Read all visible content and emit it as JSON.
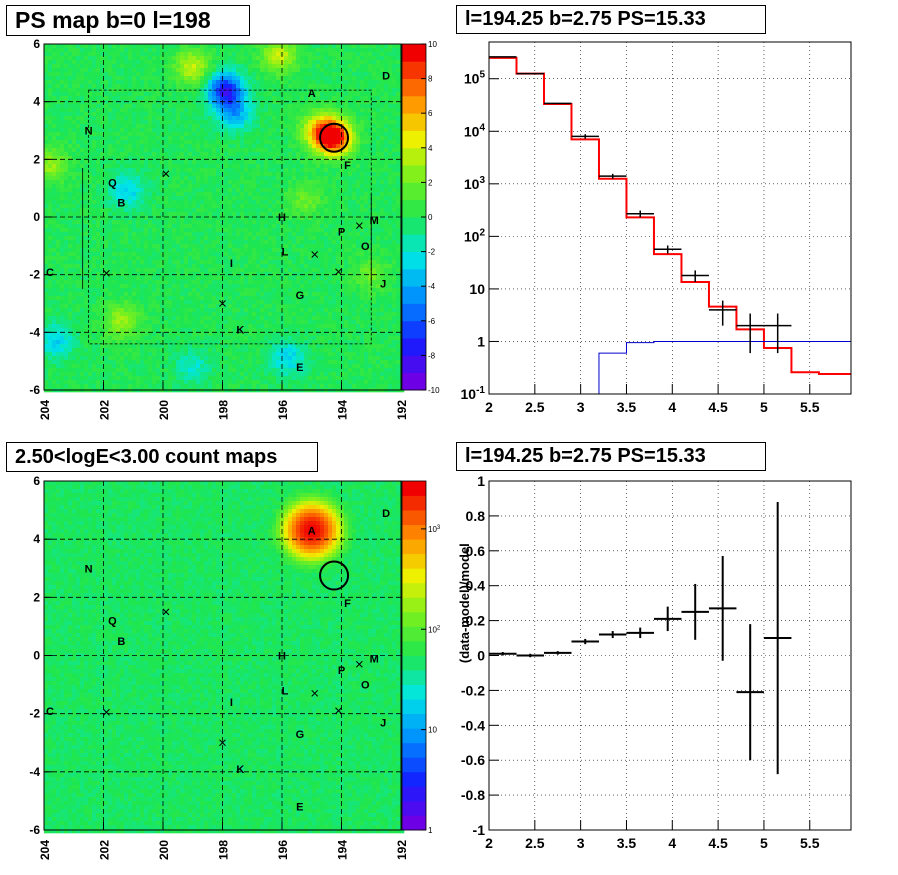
{
  "panels": {
    "ps_map_title": "PS map b=0 l=198",
    "count_map_title": "2.50<logE<3.00 count maps",
    "spectrum_title": "l=194.25 b=2.75 PS=15.33",
    "residual_title": "l=194.25 b=2.75 PS=15.33"
  },
  "colors": {
    "data": "#000000",
    "model": "#ff0000",
    "component": "#0000cc",
    "grid": "#000000"
  },
  "chart_data": [
    {
      "type": "heatmap",
      "title": "PS map b=0 l=198",
      "xlim": [
        204,
        192
      ],
      "ylim": [
        -6,
        6
      ],
      "x_ticks": [
        "204",
        "202",
        "200",
        "198",
        "196",
        "194",
        "192"
      ],
      "y_ticks": [
        "-6",
        "-4",
        "-2",
        "0",
        "2",
        "4",
        "6"
      ],
      "colorbar": {
        "min": -10,
        "max": 10,
        "ticks": [
          "-10",
          "-8",
          "-6",
          "-4",
          "-2",
          "0",
          "2",
          "4",
          "6",
          "8",
          "10"
        ]
      },
      "sources": [
        {
          "label": "A",
          "l": 195.0,
          "b": 4.3
        },
        {
          "label": "D",
          "l": 192.5,
          "b": 4.9
        },
        {
          "label": "N",
          "l": 202.5,
          "b": 3.0
        },
        {
          "label": "F",
          "l": 193.8,
          "b": 1.8
        },
        {
          "label": "Q",
          "l": 201.7,
          "b": 1.2
        },
        {
          "label": "B",
          "l": 201.4,
          "b": 0.5
        },
        {
          "label": "H",
          "l": 196.0,
          "b": 0.0
        },
        {
          "label": "M",
          "l": 192.9,
          "b": -0.1
        },
        {
          "label": "P",
          "l": 194.0,
          "b": -0.5
        },
        {
          "label": "O",
          "l": 193.2,
          "b": -1.0
        },
        {
          "label": "L",
          "l": 195.9,
          "b": -1.2
        },
        {
          "label": "I",
          "l": 197.7,
          "b": -1.6
        },
        {
          "label": "C",
          "l": 203.8,
          "b": -1.9
        },
        {
          "label": "J",
          "l": 192.6,
          "b": -2.3
        },
        {
          "label": "G",
          "l": 195.4,
          "b": -2.7
        },
        {
          "label": "K",
          "l": 197.4,
          "b": -3.9
        },
        {
          "label": "E",
          "l": 195.4,
          "b": -5.2
        }
      ],
      "markers": [
        {
          "l": 199.9,
          "b": 1.5
        },
        {
          "l": 193.4,
          "b": -0.3
        },
        {
          "l": 194.9,
          "b": -1.3
        },
        {
          "l": 194.1,
          "b": -1.9
        },
        {
          "l": 201.9,
          "b": -1.95
        },
        {
          "l": 198.0,
          "b": -3.0
        }
      ],
      "circle": {
        "l": 194.25,
        "b": 2.75
      },
      "hotspots": [
        {
          "l": 194.25,
          "b": 2.75,
          "v": 10
        },
        {
          "l": 194.7,
          "b": 3.0,
          "v": 6
        },
        {
          "l": 197.9,
          "b": 4.4,
          "v": -8
        },
        {
          "l": 197.6,
          "b": 3.6,
          "v": -4
        },
        {
          "l": 201.2,
          "b": 0.9,
          "v": -3
        },
        {
          "l": 203.6,
          "b": -4.3,
          "v": -3
        },
        {
          "l": 195.8,
          "b": -4.9,
          "v": -3
        },
        {
          "l": 199.0,
          "b": -5.2,
          "v": -2
        },
        {
          "l": 199.0,
          "b": 5.2,
          "v": 4
        },
        {
          "l": 196.1,
          "b": 5.6,
          "v": 4
        },
        {
          "l": 201.4,
          "b": -3.6,
          "v": 3
        },
        {
          "l": 203.8,
          "b": 1.8,
          "v": 3
        },
        {
          "l": 193.0,
          "b": -2.0,
          "v": 2
        },
        {
          "l": 195.2,
          "b": 0.6,
          "v": 2
        }
      ]
    },
    {
      "type": "line",
      "title": "l=194.25 b=2.75 PS=15.33",
      "yscale": "log",
      "xlim": [
        2,
        5.95
      ],
      "ylim": [
        0.1,
        500000
      ],
      "x_ticks": [
        "2",
        "2.5",
        "3",
        "3.5",
        "4",
        "4.5",
        "5",
        "5.5"
      ],
      "y_ticks": [
        "10^-1",
        "1",
        "10",
        "10^2",
        "10^3",
        "10^4",
        "10^5"
      ],
      "bin_edges": [
        2.0,
        2.3,
        2.6,
        2.9,
        3.2,
        3.5,
        3.8,
        4.1,
        4.4,
        4.7,
        5.0,
        5.3,
        5.6,
        5.95
      ],
      "series": [
        {
          "style": "step-model",
          "values": [
            250000,
            125000,
            33000,
            7000,
            1250,
            230,
            46,
            13.5,
            4.6,
            1.7,
            0.75,
            0.26,
            0.24
          ]
        },
        {
          "style": "step-component",
          "values": [
            0.1,
            0.1,
            0.1,
            0.1,
            0.6,
            0.95,
            1,
            1,
            1,
            1,
            1,
            1,
            1
          ]
        },
        {
          "style": "data",
          "points": [
            {
              "x": 2.15,
              "y": 260000,
              "dy": 0
            },
            {
              "x": 2.45,
              "y": 125000,
              "dy": 0
            },
            {
              "x": 2.75,
              "y": 34000,
              "dy": 0
            },
            {
              "x": 3.05,
              "y": 8000,
              "dy": 800
            },
            {
              "x": 3.35,
              "y": 1400,
              "dy": 150
            },
            {
              "x": 3.65,
              "y": 270,
              "dy": 40
            },
            {
              "x": 3.95,
              "y": 57,
              "dy": 10
            },
            {
              "x": 4.25,
              "y": 18,
              "dy": 4.5
            },
            {
              "x": 4.55,
              "y": 4,
              "dy": 2
            },
            {
              "x": 4.85,
              "y": 2,
              "dy": 1.4
            },
            {
              "x": 5.15,
              "y": 2,
              "dy": 1.4
            }
          ]
        }
      ]
    },
    {
      "type": "heatmap",
      "title": "2.50<logE<3.00 count maps",
      "xlim": [
        204,
        192
      ],
      "ylim": [
        -6,
        6
      ],
      "x_ticks": [
        "204",
        "202",
        "200",
        "198",
        "196",
        "194",
        "192"
      ],
      "y_ticks": [
        "-6",
        "-4",
        "-2",
        "0",
        "2",
        "4",
        "6"
      ],
      "colorbar": {
        "scale": "log",
        "min": 1,
        "max": 3000,
        "ticks": [
          "1",
          "10",
          "10^2",
          "10^3"
        ]
      },
      "circle": {
        "l": 194.25,
        "b": 2.75
      },
      "hotspots": [
        {
          "l": 195.0,
          "b": 4.3,
          "v": 3000
        }
      ]
    },
    {
      "type": "scatter",
      "title": "l=194.25 b=2.75 PS=15.33",
      "ylabel": "(data-model)/model",
      "xlim": [
        2,
        5.95
      ],
      "ylim": [
        -1,
        1
      ],
      "x_ticks": [
        "2",
        "2.5",
        "3",
        "3.5",
        "4",
        "4.5",
        "5",
        "5.5"
      ],
      "y_ticks": [
        "-1",
        "-0.8",
        "-0.6",
        "-0.4",
        "-0.2",
        "0",
        "0.2",
        "0.4",
        "0.6",
        "0.8",
        "1"
      ],
      "points": [
        {
          "x": 2.15,
          "y": 0.01,
          "dy": 0.01
        },
        {
          "x": 2.45,
          "y": 0.0,
          "dy": 0.01
        },
        {
          "x": 2.75,
          "y": 0.015,
          "dy": 0.01
        },
        {
          "x": 3.05,
          "y": 0.08,
          "dy": 0.015
        },
        {
          "x": 3.35,
          "y": 0.12,
          "dy": 0.02
        },
        {
          "x": 3.65,
          "y": 0.13,
          "dy": 0.03
        },
        {
          "x": 3.95,
          "y": 0.21,
          "dy": 0.07
        },
        {
          "x": 4.25,
          "y": 0.25,
          "dy": 0.16
        },
        {
          "x": 4.55,
          "y": 0.27,
          "dy": 0.3
        },
        {
          "x": 4.85,
          "y": -0.21,
          "dy": 0.39
        },
        {
          "x": 5.15,
          "y": 0.1,
          "dy": 0.78
        }
      ]
    }
  ]
}
